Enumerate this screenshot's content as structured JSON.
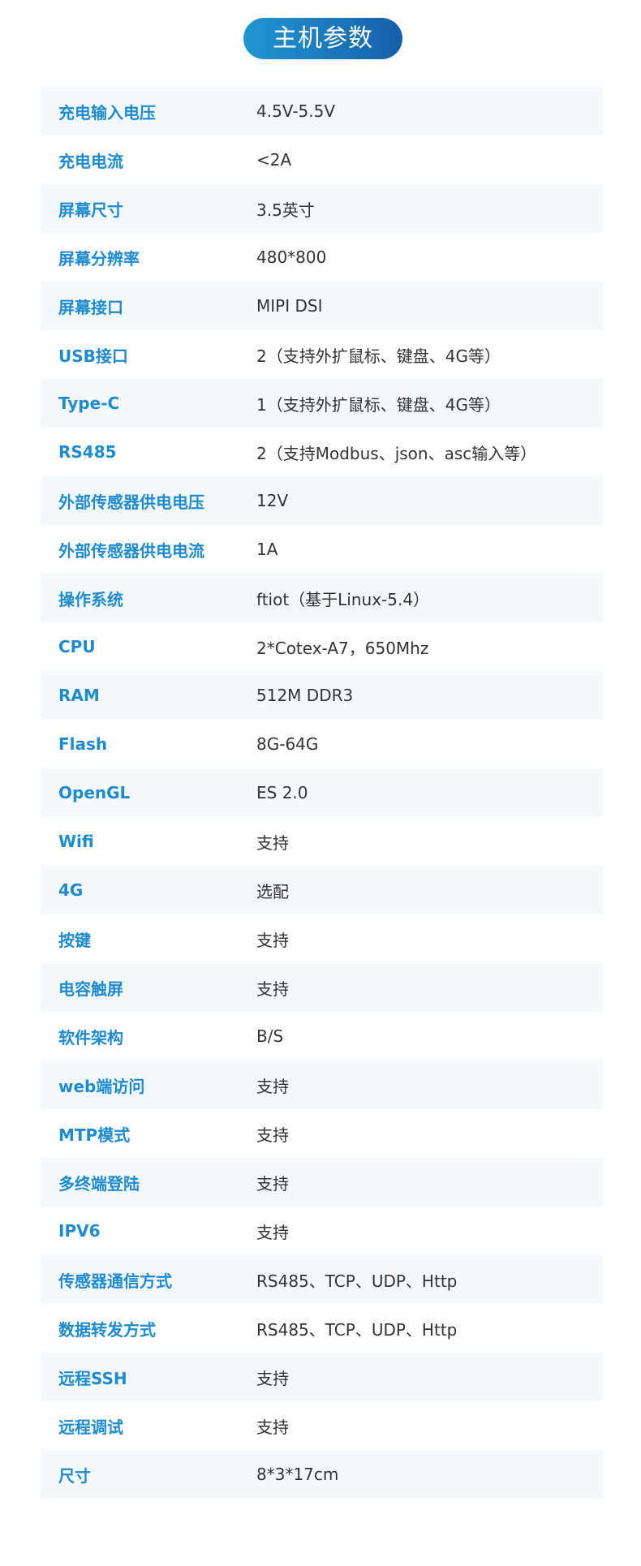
{
  "title": "主机参数",
  "colors": {
    "accent_start": "#2196d3",
    "accent_end": "#1660a8",
    "label": "#1e8bd0",
    "row_alt_bg": "#f5f9fd"
  },
  "specs": [
    {
      "label": "充电输入电压",
      "value": "4.5V-5.5V"
    },
    {
      "label": "充电电流",
      "value": "<2A"
    },
    {
      "label": "屏幕尺寸",
      "value": "3.5英寸"
    },
    {
      "label": "屏幕分辨率",
      "value": "480*800"
    },
    {
      "label": "屏幕接口",
      "value": "MIPI DSI"
    },
    {
      "label": "USB接口",
      "value": "2（支持外扩鼠标、键盘、4G等）"
    },
    {
      "label": "Type-C",
      "value": "1（支持外扩鼠标、键盘、4G等）"
    },
    {
      "label": "RS485",
      "value": "2（支持Modbus、json、asc输入等）"
    },
    {
      "label": "外部传感器供电电压",
      "value": "12V"
    },
    {
      "label": "外部传感器供电电流",
      "value": "1A"
    },
    {
      "label": "操作系统",
      "value": "ftiot（基于Linux-5.4）"
    },
    {
      "label": "CPU",
      "value": "2*Cotex-A7，650Mhz"
    },
    {
      "label": "RAM",
      "value": "512M DDR3"
    },
    {
      "label": "Flash",
      "value": "8G-64G"
    },
    {
      "label": "OpenGL",
      "value": "ES 2.0"
    },
    {
      "label": "Wifi",
      "value": "支持"
    },
    {
      "label": "4G",
      "value": "选配"
    },
    {
      "label": "按键",
      "value": "支持"
    },
    {
      "label": "电容触屏",
      "value": "支持"
    },
    {
      "label": "软件架构",
      "value": "B/S"
    },
    {
      "label": "web端访问",
      "value": "支持"
    },
    {
      "label": "MTP模式",
      "value": "支持"
    },
    {
      "label": "多终端登陆",
      "value": "支持"
    },
    {
      "label": "IPV6",
      "value": "支持"
    },
    {
      "label": "传感器通信方式",
      "value": "RS485、TCP、UDP、Http"
    },
    {
      "label": "数据转发方式",
      "value": "RS485、TCP、UDP、Http"
    },
    {
      "label": "远程SSH",
      "value": "支持"
    },
    {
      "label": "远程调试",
      "value": "支持"
    },
    {
      "label": "尺寸",
      "value": "8*3*17cm"
    }
  ]
}
